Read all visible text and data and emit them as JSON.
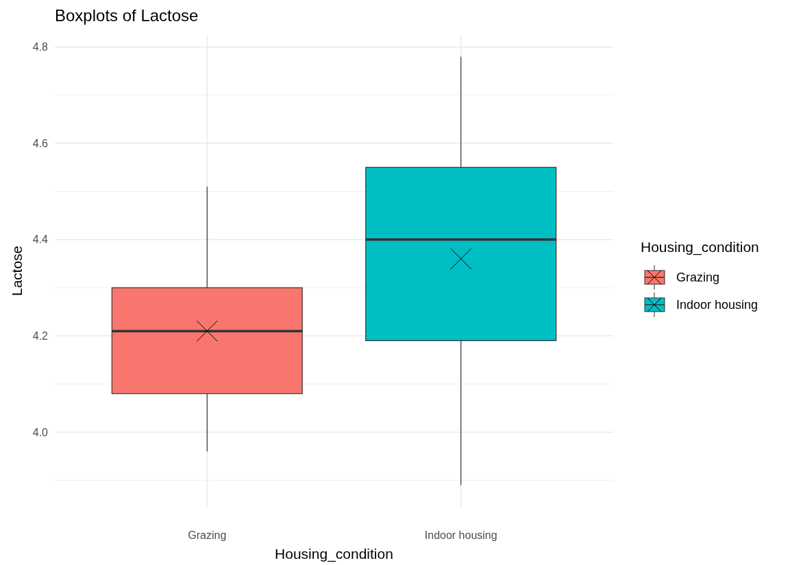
{
  "chart_data": {
    "type": "box",
    "title": "Boxplots of Lactose",
    "xlabel": "Housing_condition",
    "ylabel": "Lactose",
    "legend_title": "Housing_condition",
    "categories": [
      "Grazing",
      "Indoor housing"
    ],
    "series": [
      {
        "name": "Grazing",
        "color": "#f8766d",
        "boxes": [
          {
            "low": 3.96,
            "q1": 4.08,
            "median": 4.21,
            "q3": 4.3,
            "high": 4.51,
            "mean": 4.21
          },
          null
        ]
      },
      {
        "name": "Indoor housing",
        "color": "#00bfc4",
        "boxes": [
          null,
          {
            "low": 3.89,
            "q1": 4.19,
            "median": 4.4,
            "q3": 4.55,
            "high": 4.78,
            "mean": 4.36
          }
        ]
      }
    ],
    "ylim": [
      3.845,
      4.825
    ],
    "yticks": [
      {
        "value": 4,
        "label": "4.0"
      },
      4.2,
      4.4,
      4.6,
      4.8
    ],
    "grid": true,
    "legend": "right",
    "marker": "cross"
  }
}
